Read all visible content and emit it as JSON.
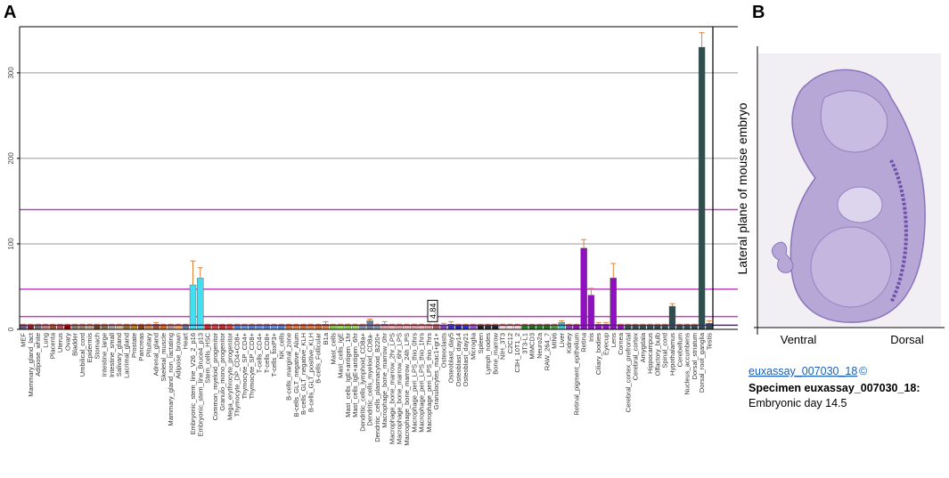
{
  "chart_data": {
    "type": "bar",
    "panel_label": "A",
    "categories": [
      "MEF",
      "Mammary_gland_lact",
      "Adipose_white",
      "Lung",
      "Placenta",
      "Uterus",
      "Ovary",
      "Bladder",
      "Umbilical_cord",
      "Epidermis",
      "Stomach",
      "Intestine_large",
      "Intestine_small",
      "Salivary_gland",
      "Lacrimal_gland",
      "Prostate",
      "Pancreas",
      "Pituitary",
      "Adrenal_gland",
      "Skeletal_muscle",
      "Mammary_gland_non_lactating",
      "Adipose_brown",
      "Heart",
      "Embryonic_stem_line_V26_2_p16",
      "Embryonic_stem_line_Bruce4_p13",
      "Stem_cells_HSC",
      "Common_myeloid_progenitor",
      "Granulo_mono_progenitor",
      "Mega_erythrocyte_progenitor",
      "Thymocyte_DP_CD4+CD8+",
      "Thymocyte_SP_CD4+",
      "Thymocyte_SP_CD8+",
      "T-cells_CD4+",
      "T-cells_CD8+",
      "T-cells_foxP3+",
      "NK_cells",
      "B-cells_marginal_zone",
      "B-cells_GLT_negative_Alum",
      "B-cells_GLT_negative_KLH",
      "B-cells_GLT_positive_KLH",
      "B-cells_Follicular",
      "B1a",
      "Mast_cells",
      "Mast_cells_IgE",
      "Mast_cells_IgE+antigen_1hr",
      "Mast_cells_IgE+antigen_6hr",
      "Dendritic_cells_lymphoid_CD8a+",
      "Dendritic_cells_myeloid_CD8a-",
      "Dendritic_cells_plasmacytoid_B220+",
      "Macrophage_bone_marrow_0hr",
      "Macrophage_bone_marrow_2hr_LPS",
      "Macrophage_bone_marrow_6hr_LPS",
      "Macrophage_bone_marrow_24h_LPS",
      "Macrophage_peri_LPS_thio_0hrs",
      "Macrophage_peri_LPS_thio_1hrs",
      "Macrophage_peri_LPS_thio_7hrs",
      "Granulocytes_mac1+gr1+",
      "Osteoclasts",
      "Osteoblast_day5",
      "Osteoblast_day14",
      "Osteoblast_day21",
      "Microglia",
      "Spleen",
      "Lymph_nodes",
      "Bone_marrow",
      "NIH_3T3",
      "C2C12",
      "C3H_10T1_2",
      "3T3-L1",
      "MIMCD3",
      "Neuro2a",
      "RAW_264_7",
      "MIN6",
      "Liver",
      "Kidney",
      "Retinal_pigment_epithelium",
      "Retina",
      "Iris",
      "Ciliary_bodies",
      "Eyecup",
      "Lens",
      "Cornea",
      "Cerebral_cortex_prefrontal",
      "Cerebral_cortex",
      "Amygdala",
      "Hippocampus",
      "Olfactory_bulb",
      "Spinal_cord",
      "Hypothalamus",
      "Cerebellum",
      "Nucleus_accumbens",
      "Dorsal_striatum",
      "Dorsal_root_ganglia",
      "Testis"
    ],
    "values": [
      5,
      5,
      5,
      5,
      5,
      5,
      5,
      5,
      5,
      5,
      5,
      5,
      5,
      5,
      5,
      5,
      5,
      5,
      6,
      5,
      5,
      5,
      5,
      52,
      60,
      5,
      5,
      5,
      5,
      5,
      5,
      5,
      5,
      5,
      5,
      5,
      5,
      5,
      5,
      5,
      5,
      6,
      5,
      5,
      5,
      5,
      5,
      10,
      5,
      6,
      5,
      5,
      5,
      5,
      5,
      5,
      5,
      5,
      6,
      5,
      5,
      5,
      5,
      5,
      5,
      5,
      5,
      5,
      5,
      5,
      5,
      5,
      5,
      8,
      5,
      5,
      95,
      40,
      6,
      6,
      60,
      5,
      5,
      5,
      5,
      5,
      5,
      5,
      27,
      5,
      5,
      5,
      330,
      7
    ],
    "errors": [
      1,
      1,
      1,
      1,
      1,
      1,
      1,
      1,
      1,
      1,
      1,
      1,
      1,
      1,
      1,
      1,
      1,
      1,
      2,
      1,
      1,
      1,
      1,
      28,
      12,
      1,
      1,
      1,
      1,
      1,
      1,
      1,
      1,
      1,
      1,
      1,
      1,
      1,
      1,
      1,
      1,
      3,
      1,
      1,
      1,
      1,
      1,
      2,
      1,
      3,
      1,
      1,
      1,
      1,
      1,
      1,
      1,
      2,
      3,
      1,
      1,
      1,
      1,
      1,
      1,
      1,
      1,
      1,
      1,
      1,
      1,
      1,
      1,
      2,
      1,
      1,
      10,
      8,
      2,
      2,
      17,
      1,
      1,
      1,
      1,
      1,
      1,
      1,
      3,
      1,
      1,
      1,
      17,
      3
    ],
    "colors": [
      "#6a5a8c",
      "#8b2020",
      "#707070",
      "#c08080",
      "#a0522d",
      "#b05050",
      "#8b0000",
      "#808060",
      "#a08060",
      "#c0a080",
      "#6b4226",
      "#8c6d46",
      "#a0a0a0",
      "#d2b48c",
      "#9c6b30",
      "#b8860b",
      "#8b4513",
      "#cd853f",
      "#a0522d",
      "#d2691e",
      "#bc8f8f",
      "#f4a460",
      "#5a7a9a",
      "#40e0f0",
      "#40e0f0",
      "#c03030",
      "#d04040",
      "#c03030",
      "#d04040",
      "#5080d0",
      "#6090e0",
      "#5080d0",
      "#6090e0",
      "#5080d0",
      "#6090e0",
      "#5080d0",
      "#d07030",
      "#e08040",
      "#d07030",
      "#e08040",
      "#d07030",
      "#e08040",
      "#80d040",
      "#90e050",
      "#80d040",
      "#90e050",
      "#8090a0",
      "#708090",
      "#8090a0",
      "#e0a0a0",
      "#f0b0b0",
      "#e0a0a0",
      "#f0b0b0",
      "#e0a0a0",
      "#f0b0b0",
      "#e0a0a0",
      "#a06060",
      "#8040c0",
      "#3030c0",
      "#2020b0",
      "#3030c0",
      "#9050d0",
      "#202020",
      "#303030",
      "#202020",
      "#f4d4d4",
      "#f0e0e0",
      "#f4d4d4",
      "#208020",
      "#207020",
      "#208020",
      "#207020",
      "#40a040",
      "#40c0c0",
      "#8040b0",
      "#9010c0",
      "#9010c0",
      "#9010c0",
      "#9010c0",
      "#9010c0",
      "#9010c0",
      "#9010c0",
      "#2f4f4f",
      "#2f4f4f",
      "#2f4f4f",
      "#2f4f4f",
      "#2f4f4f",
      "#2f4f4f",
      "#2f4f4f",
      "#2f4f4f",
      "#2f4f4f",
      "#2f4f4f",
      "#2f4f4f",
      "#2f4f4f"
    ],
    "error_color": "#e08030",
    "ylim": [
      0,
      354
    ],
    "yticks": [
      0,
      100,
      200,
      300
    ],
    "grid": true,
    "reference_lines": [
      {
        "value": 140,
        "color": "#c040c0"
      },
      {
        "value": 47,
        "color": "#c040c0"
      },
      {
        "value": 15,
        "color": "#c040c0"
      }
    ],
    "median": 4.84,
    "median_color": "#502080"
  },
  "panel_b": {
    "label": "B",
    "axis_label": "Lateral plane of mouse embryo",
    "left_label": "Ventral",
    "right_label": "Dorsal",
    "link": "euxassay_007030_18",
    "copyright": "©",
    "specimen": "Specimen euxassay_007030_18:",
    "stage": "Embryonic day 14.5"
  }
}
